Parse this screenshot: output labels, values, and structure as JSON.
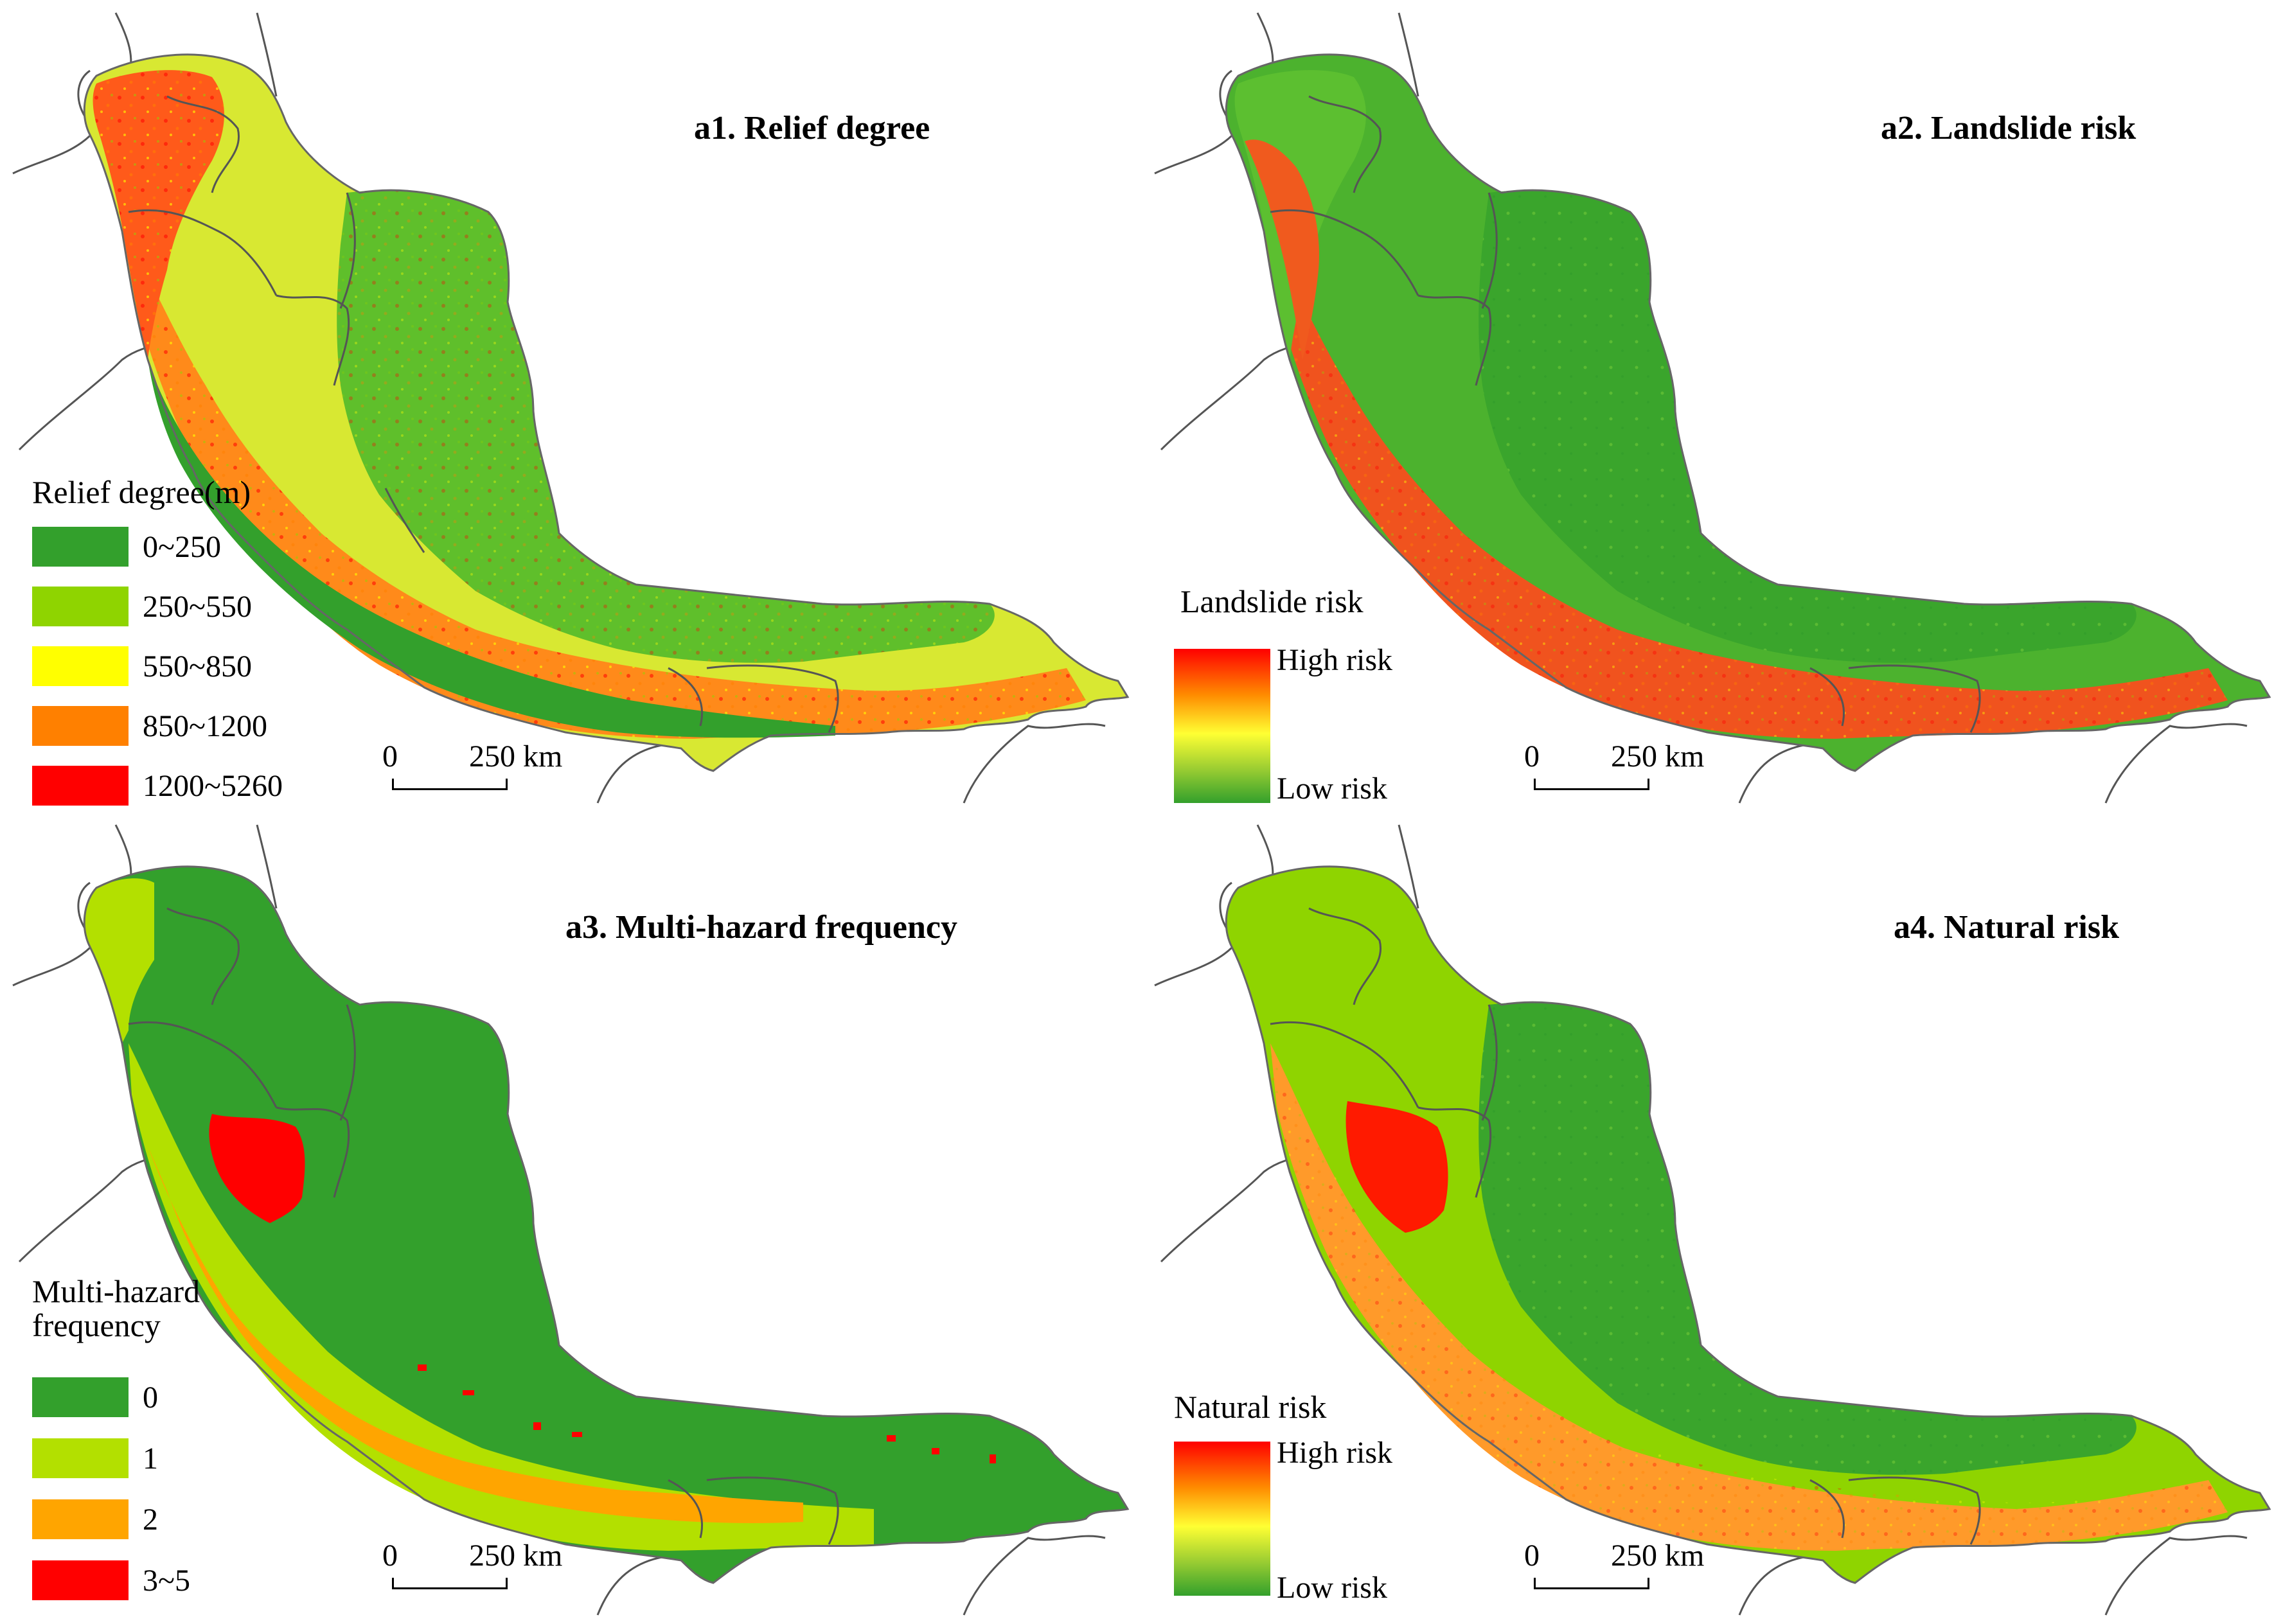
{
  "figure": {
    "panels": [
      {
        "id": "a1",
        "title": "a1. Relief degree",
        "legend": {
          "kind": "classes",
          "title": "Relief degree(m)",
          "classes": [
            {
              "label": "0~250",
              "color": "#33a02c"
            },
            {
              "label": "250~550",
              "color": "#8fd400"
            },
            {
              "label": "550~850",
              "color": "#ffff00"
            },
            {
              "label": "850~1200",
              "color": "#ff8000"
            },
            {
              "label": "1200~5260",
              "color": "#ff0000"
            }
          ]
        },
        "scale": {
          "zero": "0",
          "distance": "250 km"
        }
      },
      {
        "id": "a2",
        "title": "a2. Landslide risk",
        "legend": {
          "kind": "ramp",
          "title": "Landslide risk",
          "high_label": "High risk",
          "low_label": "Low risk",
          "ramp_colors": [
            "#ff0000",
            "#ff8c00",
            "#ffff33",
            "#9acd32",
            "#33a02c"
          ]
        },
        "scale": {
          "zero": "0",
          "distance": "250 km"
        }
      },
      {
        "id": "a3",
        "title": "a3. Multi-hazard frequency",
        "legend": {
          "kind": "classes",
          "title": "Multi-hazard\nfrequency",
          "classes": [
            {
              "label": "0",
              "color": "#33a02c"
            },
            {
              "label": "1",
              "color": "#b3e000"
            },
            {
              "label": "2",
              "color": "#ffa500"
            },
            {
              "label": "3~5",
              "color": "#ff0000"
            }
          ]
        },
        "scale": {
          "zero": "0",
          "distance": "250 km"
        }
      },
      {
        "id": "a4",
        "title": "a4. Natural risk",
        "legend": {
          "kind": "ramp",
          "title": "Natural risk",
          "high_label": "High risk",
          "low_label": "Low risk",
          "ramp_colors": [
            "#ff0000",
            "#ff8c00",
            "#ffff33",
            "#9acd32",
            "#33a02c"
          ]
        },
        "scale": {
          "zero": "0",
          "distance": "250 km"
        }
      }
    ]
  }
}
